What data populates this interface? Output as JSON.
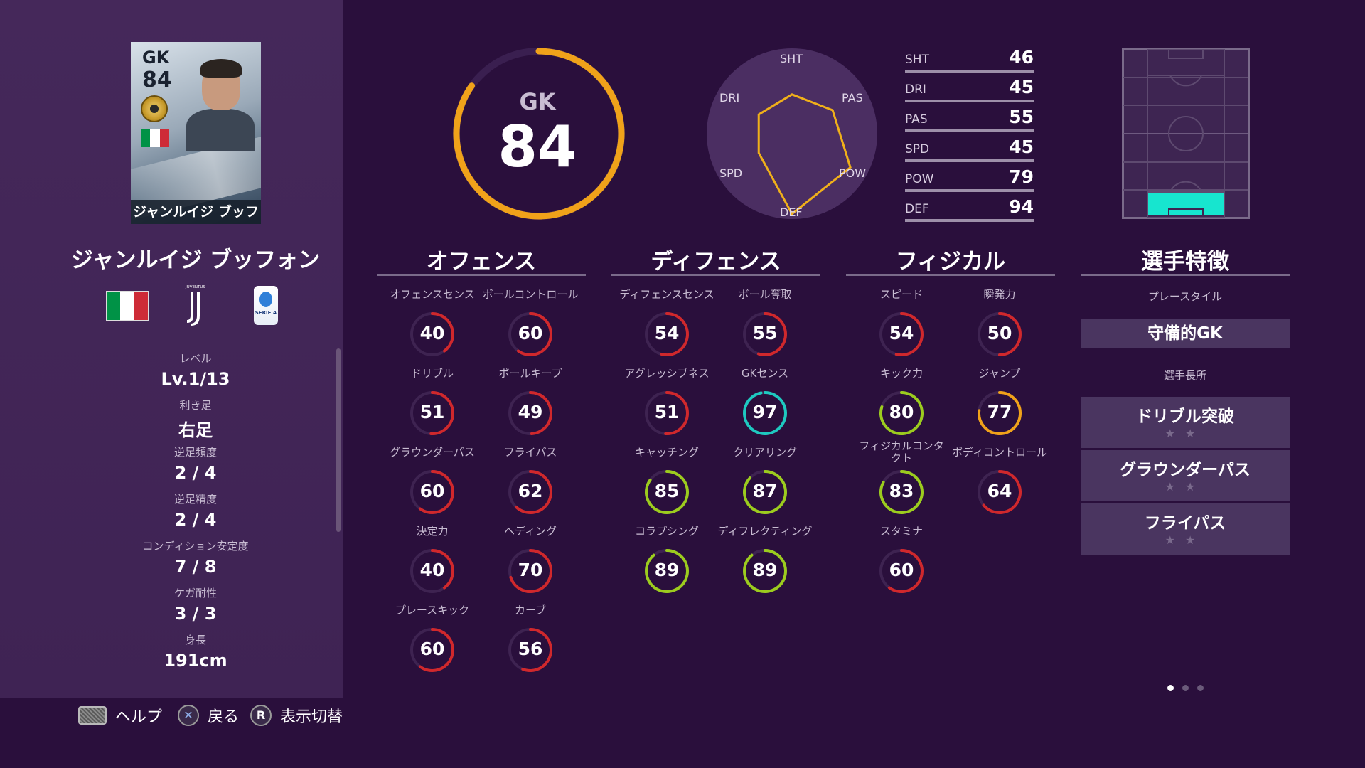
{
  "card": {
    "position": "GK",
    "overall": "84",
    "name": "ジャンルイジ ブッフォン"
  },
  "player": {
    "name": "ジャンルイジ ブッフォン",
    "club_logo_text": "JUVENTUS",
    "league_logo_text": "SERIE A"
  },
  "info": [
    {
      "label": "レベル",
      "value": "Lv.1/13"
    },
    {
      "label": "利き足",
      "value": "右足"
    },
    {
      "label": "逆足頻度",
      "value": "2 / 4"
    },
    {
      "label": "逆足精度",
      "value": "2 / 4"
    },
    {
      "label": "コンディション安定度",
      "value": "7 / 8"
    },
    {
      "label": "ケガ耐性",
      "value": "3 / 3"
    },
    {
      "label": "身長",
      "value": "191cm"
    }
  ],
  "overall": {
    "position": "GK",
    "value": "84",
    "max": 99,
    "color": "#f0a21a"
  },
  "radar": {
    "labels": [
      "SHT",
      "PAS",
      "POW",
      "DEF",
      "SPD",
      "DRI"
    ],
    "values": [
      46,
      55,
      79,
      94,
      45,
      45
    ],
    "color": "#f0b01a"
  },
  "bars": [
    {
      "label": "SHT",
      "value": "46"
    },
    {
      "label": "DRI",
      "value": "45"
    },
    {
      "label": "PAS",
      "value": "55"
    },
    {
      "label": "SPD",
      "value": "45"
    },
    {
      "label": "POW",
      "value": "79"
    },
    {
      "label": "DEF",
      "value": "94"
    }
  ],
  "sections": {
    "offense": {
      "title": "オフェンス",
      "stats": [
        {
          "label": "オフェンスセンス",
          "value": "40"
        },
        {
          "label": "ボールコントロール",
          "value": "60"
        },
        {
          "label": "ドリブル",
          "value": "51"
        },
        {
          "label": "ボールキープ",
          "value": "49"
        },
        {
          "label": "グラウンダーパス",
          "value": "60"
        },
        {
          "label": "フライパス",
          "value": "62"
        },
        {
          "label": "決定力",
          "value": "40"
        },
        {
          "label": "ヘディング",
          "value": "70"
        },
        {
          "label": "プレースキック",
          "value": "60"
        },
        {
          "label": "カーブ",
          "value": "56"
        }
      ]
    },
    "defense": {
      "title": "ディフェンス",
      "stats": [
        {
          "label": "ディフェンスセンス",
          "value": "54"
        },
        {
          "label": "ボール奪取",
          "value": "55"
        },
        {
          "label": "アグレッシブネス",
          "value": "51"
        },
        {
          "label": "GKセンス",
          "value": "97"
        },
        {
          "label": "キャッチング",
          "value": "85"
        },
        {
          "label": "クリアリング",
          "value": "87"
        },
        {
          "label": "コラプシング",
          "value": "89"
        },
        {
          "label": "ディフレクティング",
          "value": "89"
        }
      ]
    },
    "physical": {
      "title": "フィジカル",
      "stats": [
        {
          "label": "スピード",
          "value": "54"
        },
        {
          "label": "瞬発力",
          "value": "50"
        },
        {
          "label": "キック力",
          "value": "80"
        },
        {
          "label": "ジャンプ",
          "value": "77"
        },
        {
          "label": "フィジカルコンタクト",
          "value": "83"
        },
        {
          "label": "ボディコントロール",
          "value": "64"
        },
        {
          "label": "スタミナ",
          "value": "60"
        }
      ]
    },
    "traits": {
      "title": "選手特徴",
      "playstyle_label": "プレースタイル",
      "playstyle": "守備的GK",
      "skills_label": "選手長所",
      "skills": [
        {
          "name": "ドリブル突破",
          "stars": "★★"
        },
        {
          "name": "グラウンダーパス",
          "stars": "★★"
        },
        {
          "name": "フライパス",
          "stars": "★★"
        }
      ]
    }
  },
  "hints": [
    {
      "label": "ヘルプ"
    },
    {
      "icon": "✕",
      "label": "戻る"
    },
    {
      "icon": "R",
      "label": "表示切替"
    }
  ],
  "colors": {
    "red": "#d0282c",
    "orange": "#f0a21a",
    "teal": "#1ec9c0",
    "green": "#9ccc1e",
    "pitch_highlight": "#17e5cf"
  }
}
